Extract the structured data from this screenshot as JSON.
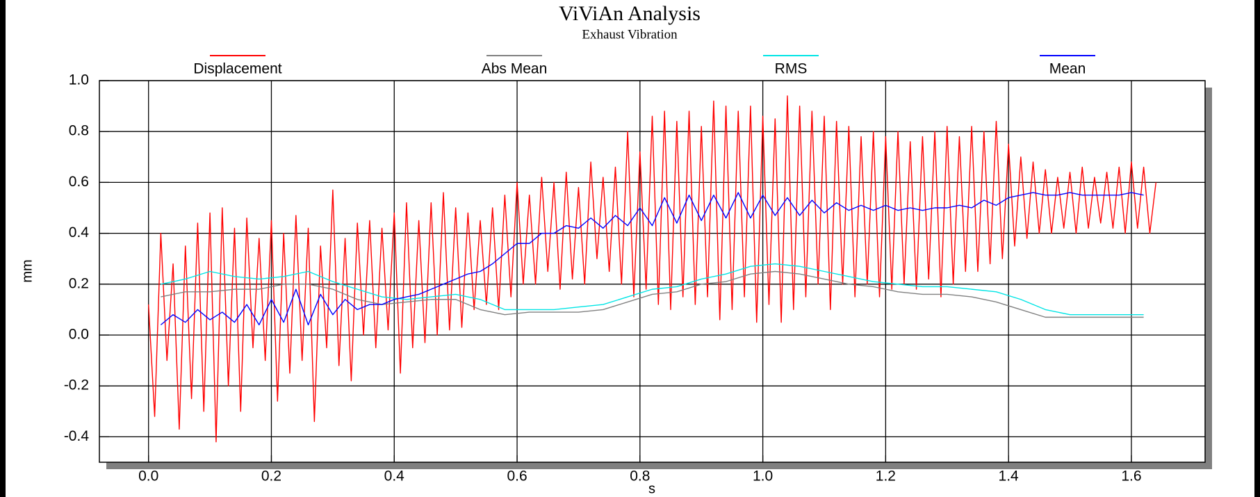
{
  "chart_data": {
    "type": "line",
    "title": "ViViAn Analysis",
    "subtitle": "Exhaust Vibration",
    "x_label": "s",
    "y_label": "mm",
    "xlim": [
      -0.08,
      1.72
    ],
    "ylim": [
      -0.5,
      1.0
    ],
    "xticks": [
      {
        "value": 0,
        "label": "0.0"
      },
      0.2,
      0.4,
      0.6,
      0.8,
      {
        "value": 1,
        "label": "1.0"
      },
      1.2,
      1.4,
      1.6
    ],
    "yticks": [
      -0.4,
      -0.2,
      {
        "value": 0,
        "label": "0.0"
      },
      0.2,
      0.4,
      0.6,
      0.8,
      {
        "value": 1,
        "label": "1.0"
      }
    ],
    "grid": true,
    "legend": "top",
    "series": [
      {
        "name": "Displacement",
        "color": "#ff0000",
        "x": [
          0,
          0.01,
          0.02,
          0.03,
          0.04,
          0.05,
          0.06,
          0.07,
          0.08,
          0.09,
          0.1,
          0.11,
          0.12,
          0.13,
          0.14,
          0.15,
          0.16,
          0.17,
          0.18,
          0.19,
          0.2,
          0.21,
          0.22,
          0.23,
          0.24,
          0.25,
          0.26,
          0.27,
          0.28,
          0.29,
          0.3,
          0.31,
          0.32,
          0.33,
          0.34,
          0.35,
          0.36,
          0.37,
          0.38,
          0.39,
          0.4,
          0.41,
          0.42,
          0.43,
          0.44,
          0.45,
          0.46,
          0.47,
          0.48,
          0.49,
          0.5,
          0.51,
          0.52,
          0.53,
          0.54,
          0.55,
          0.56,
          0.57,
          0.58,
          0.59,
          0.6,
          0.61,
          0.62,
          0.63,
          0.64,
          0.65,
          0.66,
          0.67,
          0.68,
          0.69,
          0.7,
          0.71,
          0.72,
          0.73,
          0.74,
          0.75,
          0.76,
          0.77,
          0.78,
          0.79,
          0.8,
          0.81,
          0.82,
          0.83,
          0.84,
          0.85,
          0.86,
          0.87,
          0.88,
          0.89,
          0.9,
          0.91,
          0.92,
          0.93,
          0.94,
          0.95,
          0.96,
          0.97,
          0.98,
          0.99,
          1,
          1.01,
          1.02,
          1.03,
          1.04,
          1.05,
          1.06,
          1.07,
          1.08,
          1.09,
          1.1,
          1.11,
          1.12,
          1.13,
          1.14,
          1.15,
          1.16,
          1.17,
          1.18,
          1.19,
          1.2,
          1.21,
          1.22,
          1.23,
          1.24,
          1.25,
          1.26,
          1.27,
          1.28,
          1.29,
          1.3,
          1.31,
          1.32,
          1.33,
          1.34,
          1.35,
          1.36,
          1.37,
          1.38,
          1.39,
          1.4,
          1.41,
          1.42,
          1.43,
          1.44,
          1.45,
          1.46,
          1.47,
          1.48,
          1.49,
          1.5,
          1.51,
          1.52,
          1.53,
          1.54,
          1.55,
          1.56,
          1.57,
          1.58,
          1.59,
          1.6,
          1.61,
          1.62,
          1.63,
          1.64
        ],
        "values": [
          0.12,
          -0.32,
          0.4,
          -0.1,
          0.28,
          -0.37,
          0.35,
          -0.25,
          0.44,
          -0.3,
          0.48,
          -0.42,
          0.5,
          -0.2,
          0.42,
          -0.3,
          0.46,
          -0.05,
          0.38,
          -0.1,
          0.45,
          -0.26,
          0.4,
          -0.15,
          0.47,
          -0.1,
          0.42,
          -0.34,
          0.35,
          -0.05,
          0.57,
          -0.12,
          0.38,
          -0.18,
          0.44,
          0,
          0.45,
          -0.05,
          0.42,
          0.02,
          0.48,
          -0.15,
          0.52,
          -0.05,
          0.45,
          -0.03,
          0.52,
          0,
          0.56,
          0.02,
          0.5,
          0.03,
          0.48,
          0.1,
          0.45,
          0.12,
          0.5,
          0.1,
          0.55,
          0.15,
          0.6,
          0.2,
          0.55,
          0.2,
          0.62,
          0.25,
          0.6,
          0.18,
          0.64,
          0.22,
          0.58,
          0.2,
          0.68,
          0.3,
          0.62,
          0.25,
          0.66,
          0.2,
          0.8,
          0.15,
          0.72,
          0.18,
          0.86,
          0.12,
          0.88,
          0.1,
          0.84,
          0.15,
          0.88,
          0.12,
          0.82,
          0.15,
          0.92,
          0.06,
          0.9,
          0.1,
          0.88,
          0.15,
          0.9,
          0.05,
          0.86,
          0.12,
          0.85,
          0.05,
          0.94,
          0.1,
          0.9,
          0.15,
          0.88,
          0.2,
          0.86,
          0.1,
          0.84,
          0.2,
          0.82,
          0.15,
          0.78,
          0.2,
          0.8,
          0.15,
          0.78,
          0.18,
          0.8,
          0.2,
          0.76,
          0.18,
          0.78,
          0.22,
          0.8,
          0.15,
          0.82,
          0.2,
          0.78,
          0.25,
          0.82,
          0.25,
          0.8,
          0.28,
          0.84,
          0.3,
          0.75,
          0.35,
          0.7,
          0.38,
          0.68,
          0.4,
          0.65,
          0.4,
          0.62,
          0.42,
          0.64,
          0.4,
          0.66,
          0.42,
          0.62,
          0.44,
          0.64,
          0.42,
          0.66,
          0.4,
          0.68,
          0.42,
          0.66,
          0.4,
          0.6
        ]
      },
      {
        "name": "Abs Mean",
        "color": "#808080",
        "x": [
          0.02,
          0.06,
          0.1,
          0.14,
          0.18,
          0.22,
          0.26,
          0.3,
          0.34,
          0.38,
          0.42,
          0.46,
          0.5,
          0.54,
          0.58,
          0.62,
          0.66,
          0.7,
          0.74,
          0.78,
          0.82,
          0.86,
          0.9,
          0.94,
          0.98,
          1.02,
          1.06,
          1.1,
          1.14,
          1.18,
          1.22,
          1.26,
          1.3,
          1.34,
          1.38,
          1.42,
          1.46,
          1.5,
          1.54,
          1.58,
          1.62
        ],
        "values": [
          0.15,
          0.17,
          0.17,
          0.18,
          0.18,
          0.2,
          0.2,
          0.18,
          0.14,
          0.12,
          0.13,
          0.14,
          0.14,
          0.1,
          0.08,
          0.09,
          0.09,
          0.09,
          0.1,
          0.13,
          0.16,
          0.17,
          0.2,
          0.21,
          0.24,
          0.25,
          0.24,
          0.22,
          0.2,
          0.19,
          0.17,
          0.16,
          0.16,
          0.15,
          0.13,
          0.1,
          0.07,
          0.07,
          0.07,
          0.07,
          0.07
        ]
      },
      {
        "name": "RMS",
        "color": "#00e5e5",
        "x": [
          0.02,
          0.06,
          0.1,
          0.14,
          0.18,
          0.22,
          0.26,
          0.3,
          0.34,
          0.38,
          0.42,
          0.46,
          0.5,
          0.54,
          0.58,
          0.62,
          0.66,
          0.7,
          0.74,
          0.78,
          0.82,
          0.86,
          0.9,
          0.94,
          0.98,
          1.02,
          1.06,
          1.1,
          1.14,
          1.18,
          1.22,
          1.26,
          1.3,
          1.34,
          1.38,
          1.42,
          1.46,
          1.5,
          1.54,
          1.58,
          1.62
        ],
        "values": [
          0.2,
          0.22,
          0.25,
          0.23,
          0.22,
          0.23,
          0.25,
          0.21,
          0.18,
          0.15,
          0.14,
          0.15,
          0.16,
          0.14,
          0.1,
          0.1,
          0.1,
          0.11,
          0.12,
          0.15,
          0.18,
          0.19,
          0.22,
          0.24,
          0.27,
          0.28,
          0.27,
          0.25,
          0.23,
          0.21,
          0.2,
          0.19,
          0.19,
          0.18,
          0.17,
          0.14,
          0.1,
          0.08,
          0.08,
          0.08,
          0.08
        ]
      },
      {
        "name": "Mean",
        "color": "#0000ff",
        "x": [
          0.02,
          0.04,
          0.06,
          0.08,
          0.1,
          0.12,
          0.14,
          0.16,
          0.18,
          0.2,
          0.22,
          0.24,
          0.26,
          0.28,
          0.3,
          0.32,
          0.34,
          0.36,
          0.38,
          0.4,
          0.42,
          0.44,
          0.46,
          0.48,
          0.5,
          0.52,
          0.54,
          0.56,
          0.58,
          0.6,
          0.62,
          0.64,
          0.66,
          0.68,
          0.7,
          0.72,
          0.74,
          0.76,
          0.78,
          0.8,
          0.82,
          0.84,
          0.86,
          0.88,
          0.9,
          0.92,
          0.94,
          0.96,
          0.98,
          1,
          1.02,
          1.04,
          1.06,
          1.08,
          1.1,
          1.12,
          1.14,
          1.16,
          1.18,
          1.2,
          1.22,
          1.24,
          1.26,
          1.28,
          1.3,
          1.32,
          1.34,
          1.36,
          1.38,
          1.4,
          1.42,
          1.44,
          1.46,
          1.48,
          1.5,
          1.52,
          1.54,
          1.56,
          1.58,
          1.6,
          1.62
        ],
        "values": [
          0.04,
          0.08,
          0.05,
          0.1,
          0.06,
          0.09,
          0.05,
          0.12,
          0.04,
          0.14,
          0.05,
          0.18,
          0.04,
          0.16,
          0.08,
          0.14,
          0.1,
          0.12,
          0.12,
          0.14,
          0.15,
          0.16,
          0.18,
          0.2,
          0.22,
          0.24,
          0.25,
          0.28,
          0.32,
          0.36,
          0.36,
          0.4,
          0.4,
          0.43,
          0.42,
          0.46,
          0.42,
          0.47,
          0.43,
          0.5,
          0.43,
          0.54,
          0.44,
          0.55,
          0.45,
          0.55,
          0.46,
          0.56,
          0.46,
          0.55,
          0.47,
          0.54,
          0.47,
          0.53,
          0.48,
          0.52,
          0.49,
          0.51,
          0.49,
          0.51,
          0.49,
          0.5,
          0.49,
          0.5,
          0.5,
          0.51,
          0.5,
          0.53,
          0.51,
          0.54,
          0.55,
          0.56,
          0.55,
          0.55,
          0.56,
          0.55,
          0.55,
          0.55,
          0.55,
          0.56,
          0.55
        ]
      }
    ]
  }
}
